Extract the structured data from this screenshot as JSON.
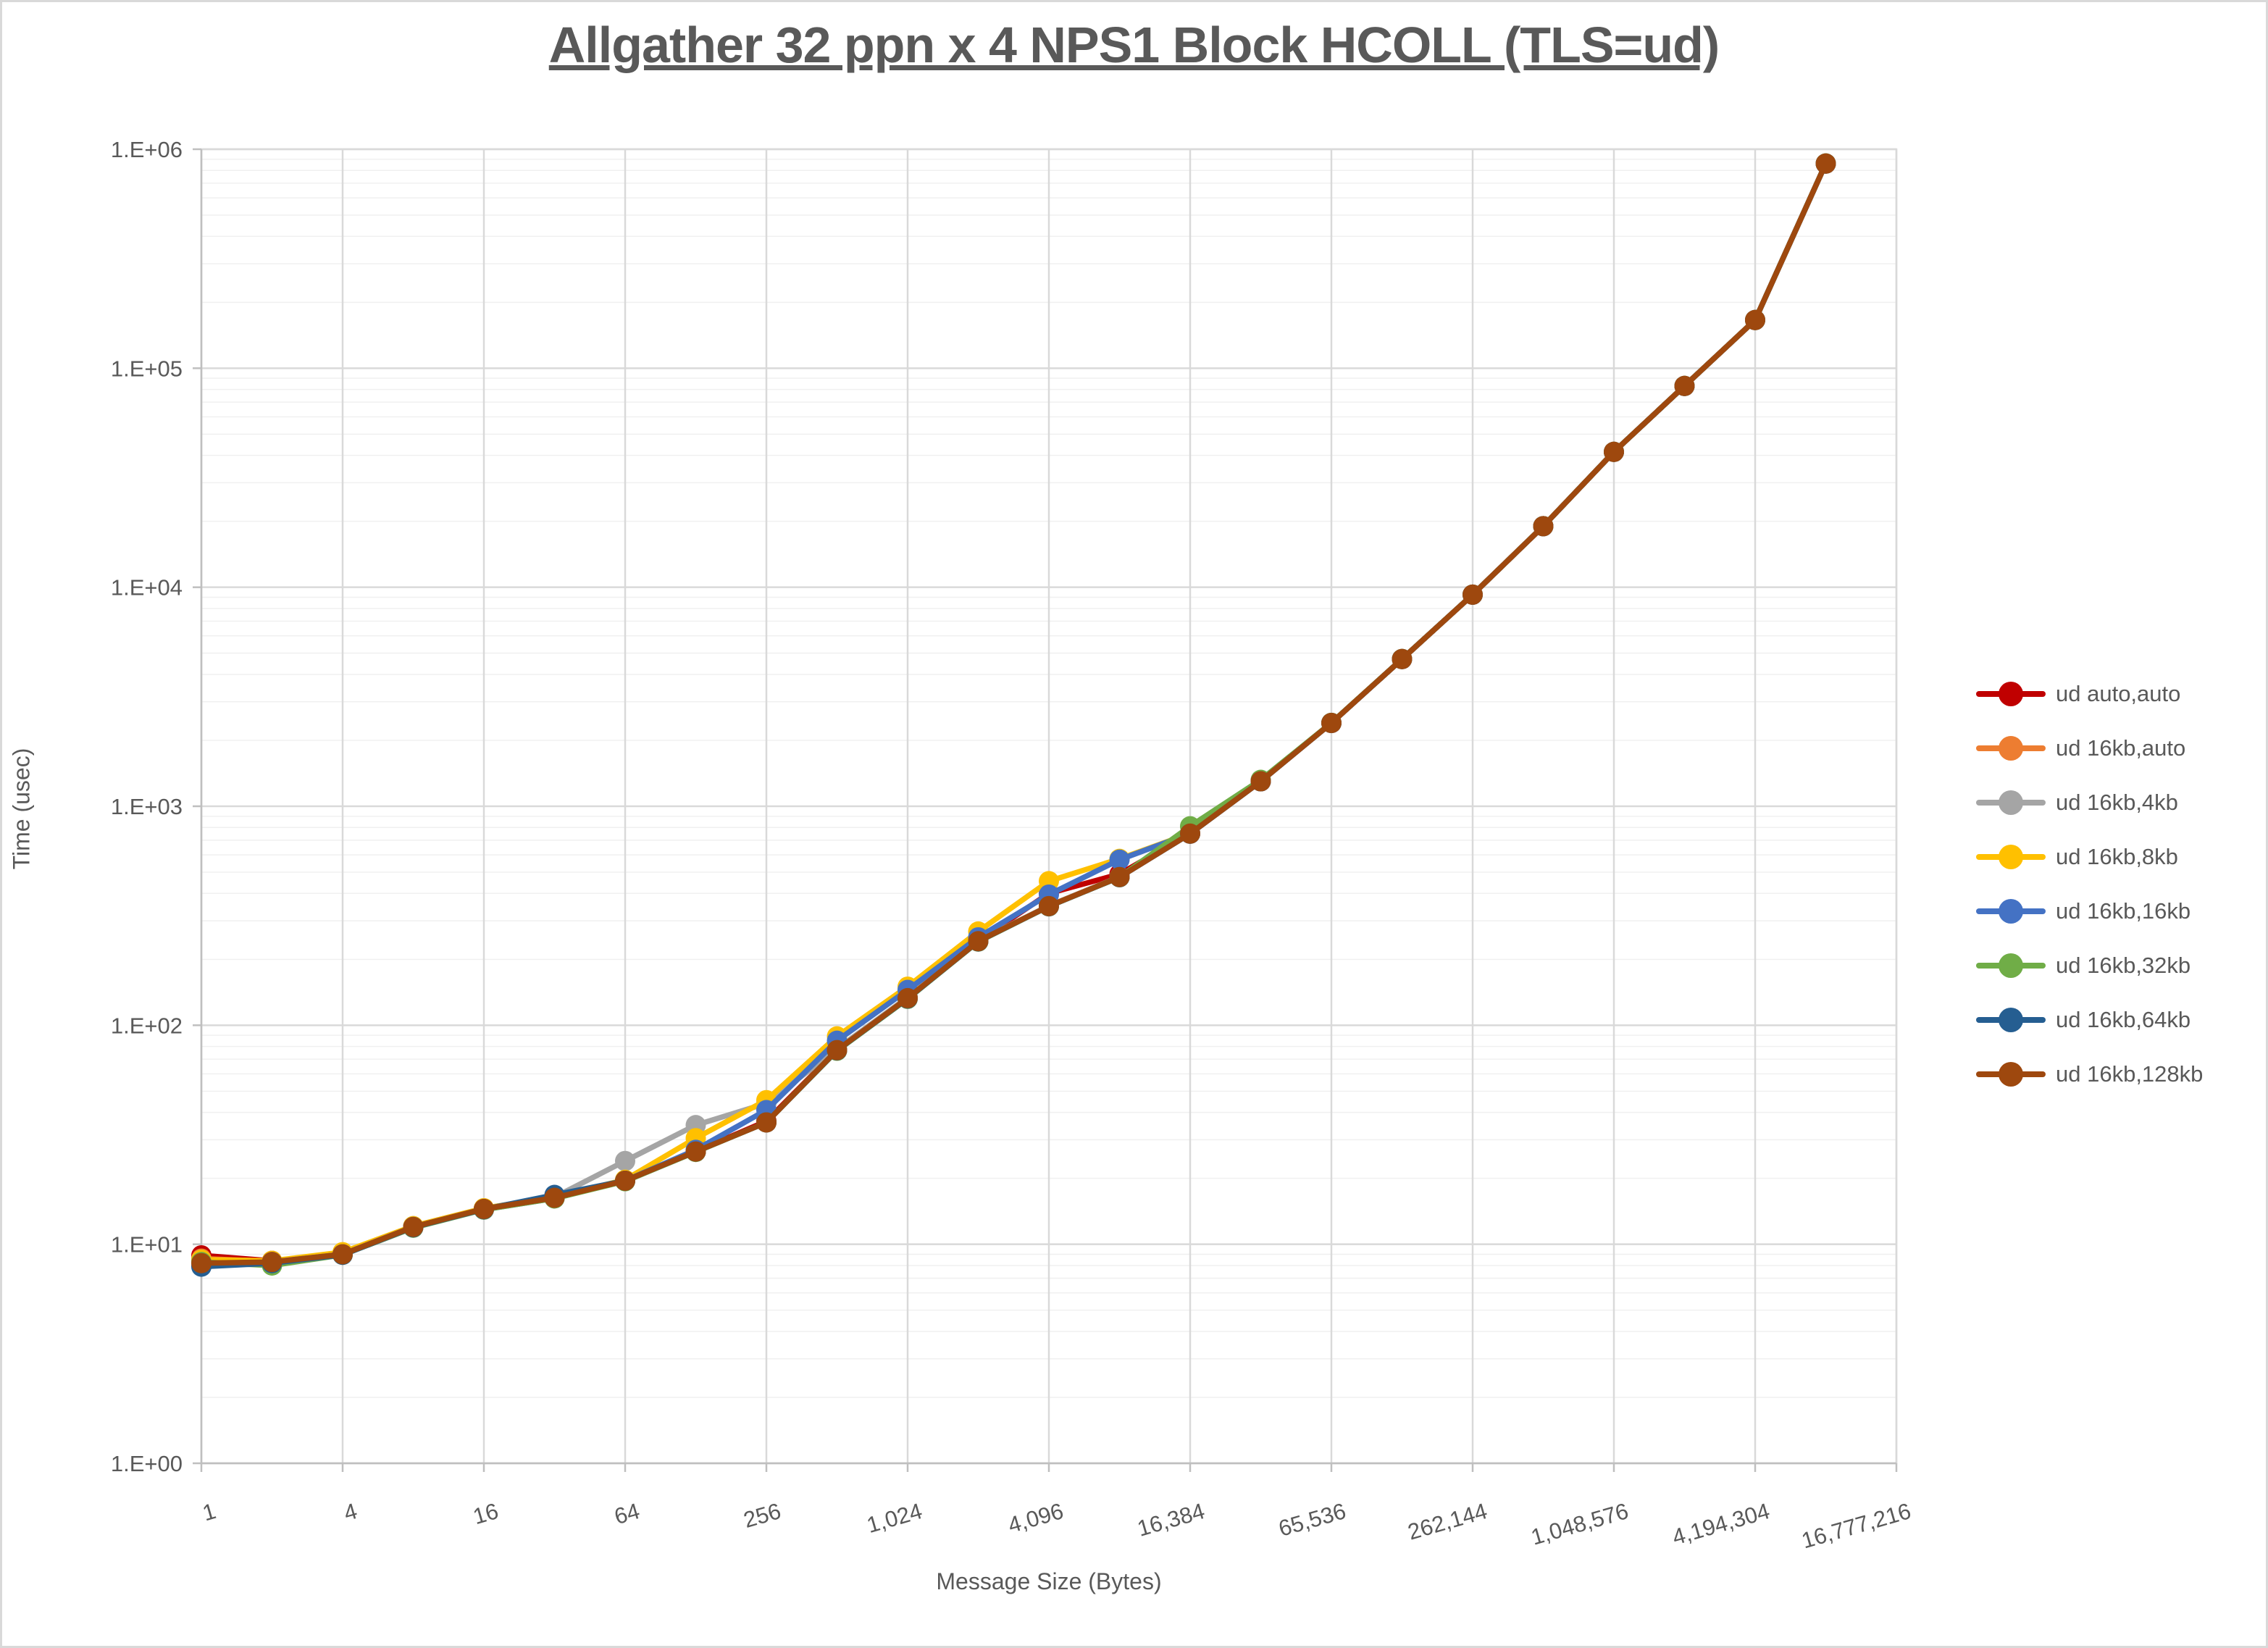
{
  "chart_data": {
    "type": "line",
    "title": "Allgather 32 ppn x 4 NPS1 Block HCOLL (TLS=ud)",
    "xlabel": "Message Size (Bytes)",
    "ylabel": "Time (usec)",
    "x_scale": "log2",
    "y_scale": "log10",
    "xlim": [
      1,
      16777216
    ],
    "ylim": [
      1,
      1000000
    ],
    "grid": "major-and-log-minor",
    "legend_position": "right",
    "x_ticks": [
      1,
      4,
      16,
      64,
      256,
      1024,
      4096,
      16384,
      65536,
      262144,
      1048576,
      4194304,
      16777216
    ],
    "x_tick_labels": [
      "1",
      "4",
      "16",
      "64",
      "256",
      "1,024",
      "4,096",
      "16,384",
      "65,536",
      "262,144",
      "1,048,576",
      "4,194,304",
      "16,777,216"
    ],
    "y_tick_labels": [
      "1.E+00",
      "1.E+01",
      "1.E+02",
      "1.E+03",
      "1.E+04",
      "1.E+05",
      "1.E+06"
    ],
    "x": [
      1,
      2,
      4,
      8,
      16,
      32,
      64,
      128,
      256,
      512,
      1024,
      2048,
      4096,
      8192,
      16384,
      32768,
      65536,
      131072,
      262144,
      524288,
      1048576,
      2097152,
      4194304,
      8388608
    ],
    "series": [
      {
        "name": "ud auto,auto",
        "color": "#C00000",
        "values": [
          8.9,
          8.4,
          9.0,
          12.0,
          14.5,
          16.3,
          19.5,
          26.5,
          36.5,
          77,
          134,
          243,
          400,
          490,
          752,
          1302,
          2400,
          4700,
          9250,
          19000,
          41500,
          83000,
          166000,
          860000
        ]
      },
      {
        "name": "ud 16kb,auto",
        "color": "#ED7D31",
        "values": [
          8.6,
          8.35,
          9.05,
          12.0,
          14.5,
          16.3,
          19.5,
          26.5,
          36.0,
          77,
          133,
          242,
          351,
          476,
          750,
          1300,
          2400,
          4700,
          9250,
          19000,
          41500,
          83000,
          166000,
          860000
        ]
      },
      {
        "name": "ud 16kb,4kb",
        "color": "#A5A5A5",
        "values": [
          8.5,
          8.35,
          9.0,
          12.1,
          14.6,
          16.4,
          24.0,
          35.0,
          44.0,
          78,
          134,
          243,
          351,
          476,
          750,
          1300,
          2400,
          4700,
          9250,
          19000,
          41500,
          83000,
          166000,
          860000
        ]
      },
      {
        "name": "ud 16kb,8kb",
        "color": "#FFC000",
        "values": [
          8.5,
          8.4,
          9.2,
          12.1,
          14.6,
          16.4,
          19.7,
          30.5,
          45.5,
          89,
          150,
          268,
          455,
          575,
          752,
          1303,
          2402,
          4702,
          9252,
          19000,
          41500,
          83000,
          166000,
          860000
        ]
      },
      {
        "name": "ud 16kb,16kb",
        "color": "#4472C4",
        "values": [
          8.0,
          8.3,
          9.0,
          12.0,
          14.4,
          16.2,
          19.5,
          27.0,
          41.0,
          85,
          145,
          252,
          395,
          570,
          751,
          1300,
          2400,
          4700,
          9250,
          19000,
          41500,
          83000,
          166000,
          860000
        ]
      },
      {
        "name": "ud 16kb,32kb",
        "color": "#70AD47",
        "values": [
          8.3,
          8.0,
          8.95,
          11.9,
          14.4,
          16.2,
          19.4,
          26.4,
          36.0,
          76.5,
          132,
          241,
          349,
          474,
          810,
          1320,
          2404,
          4704,
          9254,
          19005,
          41510,
          83010,
          166020,
          861000
        ]
      },
      {
        "name": "ud 16kb,64kb",
        "color": "#255E91",
        "values": [
          7.9,
          8.2,
          8.95,
          11.95,
          14.45,
          16.8,
          19.5,
          26.5,
          36.0,
          76.8,
          132.5,
          241.5,
          349.5,
          474.5,
          749,
          1299,
          2399,
          4699,
          9248,
          18995,
          41490,
          82990,
          165980,
          859800
        ]
      },
      {
        "name": "ud 16kb,128kb",
        "color": "#9E480E",
        "values": [
          8.2,
          8.3,
          9.0,
          12.0,
          14.5,
          16.3,
          19.5,
          26.5,
          36.0,
          77,
          133,
          242,
          350,
          475,
          750,
          1300,
          2400,
          4700,
          9250,
          19000,
          41500,
          83000,
          166000,
          860000
        ]
      }
    ],
    "colors": {
      "text": "#595959",
      "grid_major": "#D9D9D9",
      "grid_minor": "#F0F0F0",
      "axis": "#BFBFBF",
      "background": "#FFFFFF"
    }
  }
}
